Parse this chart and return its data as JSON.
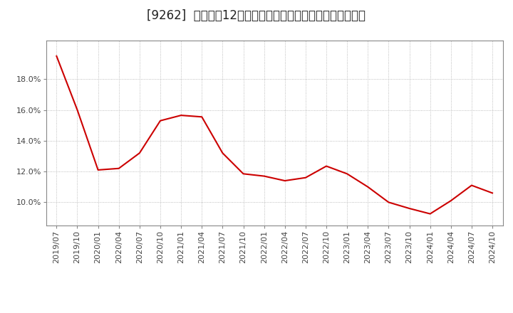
{
  "title": "[9262]  売上高の12か月移動合計の対前年同期増減率の推移",
  "line_color": "#cc0000",
  "background_color": "#ffffff",
  "plot_background_color": "#ffffff",
  "grid_color": "#aaaaaa",
  "x_labels": [
    "2019/07",
    "2019/10",
    "2020/01",
    "2020/04",
    "2020/07",
    "2020/10",
    "2021/01",
    "2021/04",
    "2021/07",
    "2021/10",
    "2022/01",
    "2022/04",
    "2022/07",
    "2022/10",
    "2023/01",
    "2023/04",
    "2023/07",
    "2023/10",
    "2024/01",
    "2024/04",
    "2024/07",
    "2024/10"
  ],
  "y_values": [
    19.5,
    16.0,
    12.1,
    12.2,
    13.2,
    15.3,
    15.65,
    15.55,
    13.2,
    11.85,
    11.7,
    11.4,
    11.6,
    12.35,
    11.85,
    11.0,
    10.0,
    9.6,
    9.25,
    10.1,
    11.1,
    10.6
  ],
  "ylim": [
    8.5,
    20.5
  ],
  "yticks": [
    10.0,
    12.0,
    14.0,
    16.0,
    18.0
  ],
  "title_fontsize": 12,
  "tick_fontsize": 8,
  "grid_linestyle": ":"
}
